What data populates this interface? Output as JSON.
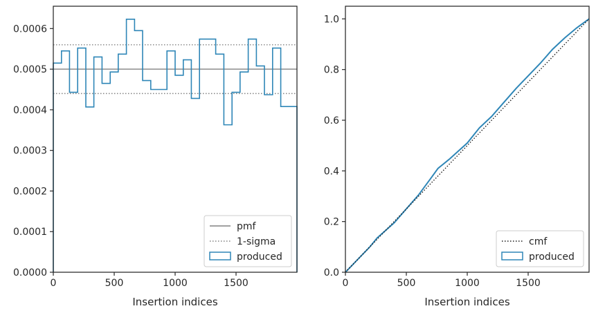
{
  "chart_data": [
    {
      "type": "step",
      "xlabel": "Insertion indices",
      "ylabel": "",
      "xlim": [
        0,
        2000
      ],
      "ylim": [
        0,
        0.000655
      ],
      "xticks": [
        0,
        500,
        1000,
        1500
      ],
      "xtick_labels": [
        "0",
        "500",
        "1000",
        "1500"
      ],
      "yticks": [
        0,
        0.0001,
        0.0002,
        0.0003,
        0.0004,
        0.0005,
        0.0006
      ],
      "ytick_labels": [
        "0.0000",
        "0.0001",
        "0.0002",
        "0.0003",
        "0.0004",
        "0.0005",
        "0.0006"
      ],
      "bin_edges": [
        0,
        67,
        133,
        200,
        267,
        333,
        400,
        467,
        533,
        600,
        667,
        733,
        800,
        867,
        933,
        1000,
        1067,
        1133,
        1200,
        1267,
        1333,
        1400,
        1467,
        1533,
        1600,
        1667,
        1733,
        1800,
        1867,
        1933,
        2000
      ],
      "pmf": 0.0005,
      "sigma_band": [
        0.00044,
        0.00056
      ],
      "series": [
        {
          "name": "produced",
          "values": [
            0.000515,
            0.000545,
            0.000443,
            0.000552,
            0.000407,
            0.00053,
            0.000465,
            0.000493,
            0.000537,
            0.000623,
            0.000595,
            0.000472,
            0.00045,
            0.00045,
            0.000545,
            0.000485,
            0.000523,
            0.000428,
            0.000574,
            0.000574,
            0.000537,
            0.000363,
            0.000443,
            0.000493,
            0.000574,
            0.000508,
            0.000437,
            0.000552,
            0.000408,
            0.000408
          ],
          "color": "#2e86b7"
        }
      ],
      "legend": {
        "position": "lower-right",
        "entries": [
          {
            "label": "pmf",
            "style": "solid",
            "color": "#808080"
          },
          {
            "label": "1-sigma",
            "style": "dotted",
            "color": "#808080"
          },
          {
            "label": "produced",
            "style": "patch",
            "color": "#2e86b7"
          }
        ]
      }
    },
    {
      "type": "line",
      "xlabel": "Insertion indices",
      "ylabel": "",
      "xlim": [
        0,
        2000
      ],
      "ylim": [
        0,
        1.05
      ],
      "xticks": [
        0,
        500,
        1000,
        1500
      ],
      "xtick_labels": [
        "0",
        "500",
        "1000",
        "1500"
      ],
      "yticks": [
        0,
        0.2,
        0.4,
        0.6,
        0.8,
        1.0
      ],
      "ytick_labels": [
        "0.0",
        "0.2",
        "0.4",
        "0.6",
        "0.8",
        "1.0"
      ],
      "series": [
        {
          "name": "produced",
          "x": [
            0,
            100,
            200,
            260,
            400,
            500,
            600,
            700,
            760,
            850,
            1000,
            1100,
            1200,
            1300,
            1400,
            1500,
            1600,
            1700,
            1800,
            1900,
            2000
          ],
          "y": [
            0,
            0.05,
            0.1,
            0.135,
            0.195,
            0.25,
            0.305,
            0.37,
            0.41,
            0.445,
            0.51,
            0.57,
            0.615,
            0.67,
            0.725,
            0.775,
            0.825,
            0.88,
            0.925,
            0.965,
            1.0
          ],
          "color": "#2e86b7"
        },
        {
          "name": "cmf",
          "x": [
            0,
            2000
          ],
          "y": [
            0,
            1.0
          ],
          "style": "dotted",
          "color": "#1a1a1a"
        }
      ],
      "legend": {
        "position": "lower-right",
        "entries": [
          {
            "label": "cmf",
            "style": "dotted",
            "color": "#1a1a1a"
          },
          {
            "label": "produced",
            "style": "patch",
            "color": "#2e86b7"
          }
        ]
      }
    }
  ]
}
